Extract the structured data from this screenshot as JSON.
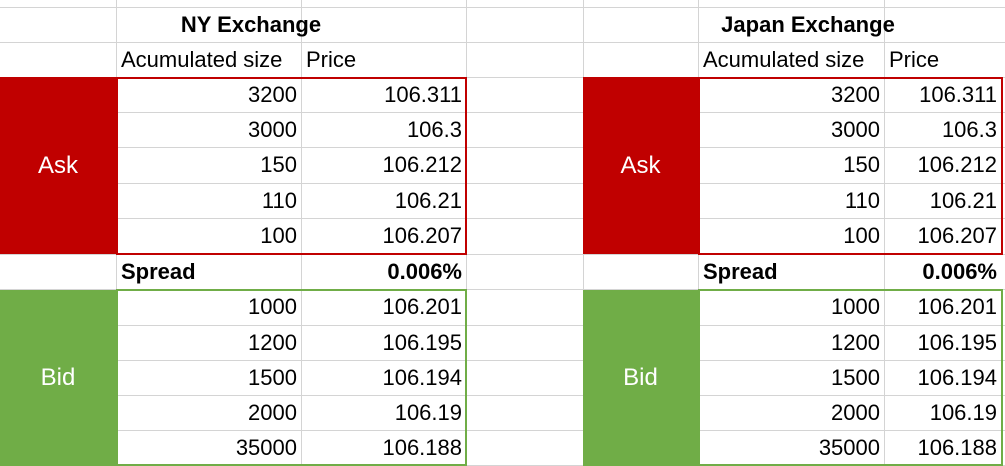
{
  "exchanges": [
    {
      "title": "NY Exchange",
      "headers": {
        "size": "Acumulated size",
        "price": "Price"
      },
      "ask_label": "Ask",
      "bid_label": "Bid",
      "ask": [
        {
          "size": "3200",
          "price": "106.311"
        },
        {
          "size": "3000",
          "price": "106.3"
        },
        {
          "size": "150",
          "price": "106.212"
        },
        {
          "size": "110",
          "price": "106.21"
        },
        {
          "size": "100",
          "price": "106.207"
        }
      ],
      "spread": {
        "label": "Spread",
        "value": "0.006%"
      },
      "bid": [
        {
          "size": "1000",
          "price": "106.201"
        },
        {
          "size": "1200",
          "price": "106.195"
        },
        {
          "size": "1500",
          "price": "106.194"
        },
        {
          "size": "2000",
          "price": "106.19"
        },
        {
          "size": "35000",
          "price": "106.188"
        }
      ]
    },
    {
      "title": "Japan Exchange",
      "headers": {
        "size": "Acumulated size",
        "price": "Price"
      },
      "ask_label": "Ask",
      "bid_label": "Bid",
      "ask": [
        {
          "size": "3200",
          "price": "106.311"
        },
        {
          "size": "3000",
          "price": "106.3"
        },
        {
          "size": "150",
          "price": "106.212"
        },
        {
          "size": "110",
          "price": "106.21"
        },
        {
          "size": "100",
          "price": "106.207"
        }
      ],
      "spread": {
        "label": "Spread",
        "value": "0.006%"
      },
      "bid": [
        {
          "size": "1000",
          "price": "106.201"
        },
        {
          "size": "1200",
          "price": "106.195"
        },
        {
          "size": "1500",
          "price": "106.194"
        },
        {
          "size": "2000",
          "price": "106.19"
        },
        {
          "size": "35000",
          "price": "106.188"
        }
      ]
    }
  ],
  "colors": {
    "ask": "#c00000",
    "bid": "#70ad47",
    "gridline": "#d4d4d4"
  }
}
